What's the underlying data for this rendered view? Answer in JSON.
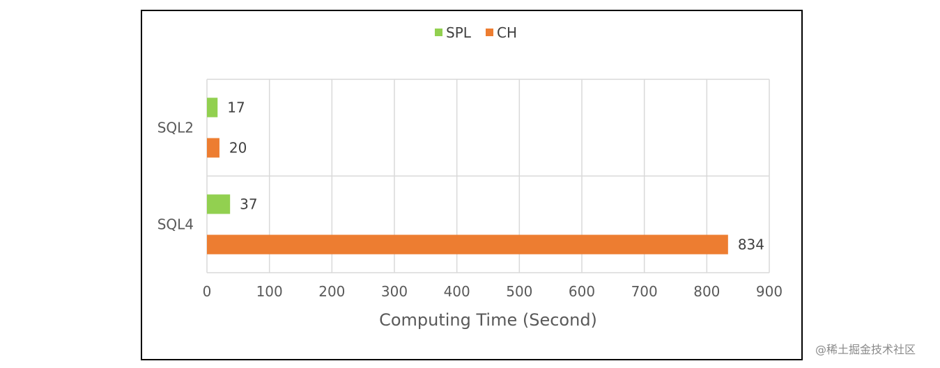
{
  "chart_data": {
    "type": "bar",
    "orientation": "horizontal",
    "categories": [
      "SQL2",
      "SQL4"
    ],
    "series": [
      {
        "name": "SPL",
        "values": [
          17,
          37
        ],
        "color": "#92D050"
      },
      {
        "name": "CH",
        "values": [
          20,
          834
        ],
        "color": "#ED7D31"
      }
    ],
    "xlabel": "Computing Time (Second)",
    "ylabel": "",
    "xlim": [
      0,
      900
    ],
    "xticks": [
      0,
      100,
      200,
      300,
      400,
      500,
      600,
      700,
      800,
      900
    ],
    "grid": true,
    "legend": "top-center",
    "data_labels": true
  },
  "watermark": "@稀土掘金技术社区"
}
